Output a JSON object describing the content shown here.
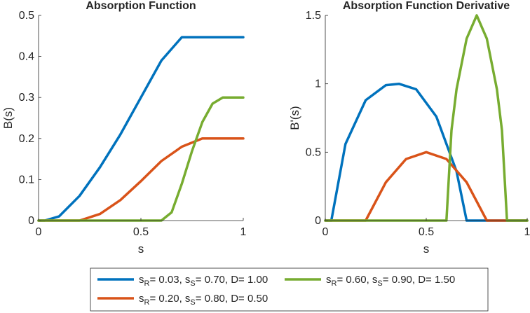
{
  "figure": {
    "legend": [
      {
        "name": "s_R= 0.03, s_S= 0.70, D= 1.00",
        "color": "#0072BD",
        "parts": [
          "s",
          "R",
          "= 0.03, s",
          "S",
          "= 0.70, D= 1.00"
        ]
      },
      {
        "name": "s_R= 0.20, s_S= 0.80, D= 0.50",
        "color": "#D95319",
        "parts": [
          "s",
          "R",
          "= 0.20, s",
          "S",
          "= 0.80, D= 0.50"
        ]
      },
      {
        "name": "s_R= 0.60, s_S= 0.90, D= 1.50",
        "color": "#77AC30",
        "parts": [
          "s",
          "R",
          "= 0.60, s",
          "S",
          "= 0.90, D= 1.50"
        ]
      }
    ]
  },
  "chart_data": [
    {
      "type": "line",
      "title": "Absorption Function",
      "xlabel": "s",
      "ylabel": "B(s)",
      "xlim": [
        0,
        1
      ],
      "ylim": [
        0,
        0.5
      ],
      "xticks": [
        0,
        0.5,
        1
      ],
      "xtick_labels": [
        "0",
        "0.5",
        "1"
      ],
      "yticks": [
        0,
        0.1,
        0.2,
        0.3,
        0.4,
        0.5
      ],
      "ytick_labels": [
        "0",
        "0.1",
        "0.2",
        "0.3",
        "0.4",
        "0.5"
      ],
      "series": [
        {
          "name": "s_R= 0.03, s_S= 0.70, D= 1.00",
          "color": "#0072BD",
          "x": [
            0,
            0.03,
            0.1,
            0.2,
            0.3,
            0.4,
            0.5,
            0.6,
            0.7,
            0.8,
            0.9,
            1.0
          ],
          "y": [
            0,
            0,
            0.01,
            0.06,
            0.13,
            0.21,
            0.3,
            0.39,
            0.447,
            0.447,
            0.447,
            0.447
          ]
        },
        {
          "name": "s_R= 0.20, s_S= 0.80, D= 0.50",
          "color": "#D95319",
          "x": [
            0,
            0.2,
            0.3,
            0.4,
            0.5,
            0.6,
            0.7,
            0.8,
            0.9,
            1.0
          ],
          "y": [
            0,
            0,
            0.016,
            0.05,
            0.096,
            0.145,
            0.18,
            0.2,
            0.2,
            0.2
          ]
        },
        {
          "name": "s_R= 0.60, s_S= 0.90, D= 1.50",
          "color": "#77AC30",
          "x": [
            0,
            0.6,
            0.65,
            0.7,
            0.75,
            0.8,
            0.85,
            0.9,
            1.0
          ],
          "y": [
            0,
            0,
            0.02,
            0.09,
            0.17,
            0.24,
            0.285,
            0.3,
            0.3
          ]
        }
      ]
    },
    {
      "type": "line",
      "title": "Absorption Function Derivative",
      "xlabel": "s",
      "ylabel": "B'(s)",
      "xlim": [
        0,
        1
      ],
      "ylim": [
        0,
        1.5
      ],
      "xticks": [
        0,
        0.5,
        1
      ],
      "xtick_labels": [
        "0",
        "0.5",
        "1"
      ],
      "yticks": [
        0,
        0.5,
        1,
        1.5
      ],
      "ytick_labels": [
        "0",
        "0.5",
        "1",
        "1.5"
      ],
      "series": [
        {
          "name": "s_R= 0.03, s_S= 0.70, D= 1.00",
          "color": "#0072BD",
          "x": [
            0,
            0.03,
            0.1,
            0.2,
            0.3,
            0.365,
            0.45,
            0.55,
            0.65,
            0.7,
            1.0
          ],
          "y": [
            0,
            0,
            0.56,
            0.88,
            0.99,
            1.0,
            0.96,
            0.76,
            0.36,
            0,
            0
          ]
        },
        {
          "name": "s_R= 0.20, s_S= 0.80, D= 0.50",
          "color": "#D95319",
          "x": [
            0,
            0.2,
            0.3,
            0.4,
            0.5,
            0.6,
            0.7,
            0.8,
            1.0
          ],
          "y": [
            0,
            0,
            0.28,
            0.45,
            0.5,
            0.45,
            0.28,
            0,
            0
          ]
        },
        {
          "name": "s_R= 0.60, s_S= 0.90, D= 1.50",
          "color": "#77AC30",
          "x": [
            0,
            0.6,
            0.625,
            0.65,
            0.7,
            0.75,
            0.8,
            0.85,
            0.875,
            0.9,
            1.0
          ],
          "y": [
            0,
            0,
            0.66,
            0.96,
            1.33,
            1.5,
            1.33,
            0.96,
            0.66,
            0,
            0
          ]
        }
      ]
    }
  ]
}
